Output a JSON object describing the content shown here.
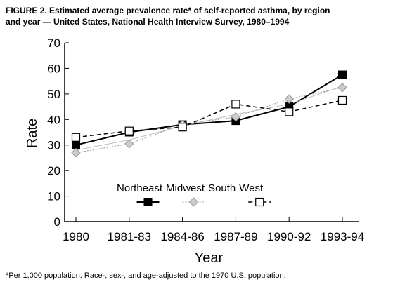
{
  "chart_data": {
    "type": "line",
    "title_lines": [
      "FIGURE 2. Estimated average prevalence rate* of self-reported asthma, by region",
      "and year — United States, National Health Interview Survey, 1980–1994"
    ],
    "footnote": "*Per 1,000 population. Race-, sex-, and age-adjusted to the 1970 U.S. population.",
    "x_label": "Year",
    "y_label": "Rate",
    "categories": [
      "1980",
      "1981-83",
      "1984-86",
      "1987-89",
      "1990-92",
      "1993-94"
    ],
    "series": [
      {
        "name": "Northeast",
        "color": "#000000",
        "values": [
          30,
          35,
          38,
          39.5,
          45,
          57.5
        ]
      },
      {
        "name": "Midwest",
        "color": "#999999",
        "values": [
          27,
          30.5,
          38,
          41,
          48,
          52.5
        ]
      },
      {
        "name": "South",
        "color": "#bbbbbb",
        "values": [
          28,
          32,
          37.5,
          42,
          46,
          53
        ]
      },
      {
        "name": "West",
        "color": "#000000",
        "values": [
          33,
          35.5,
          37,
          46,
          43,
          47.5
        ]
      }
    ],
    "ylim": [
      0,
      70
    ],
    "yticks": [
      0,
      10,
      20,
      30,
      40,
      50,
      60,
      70
    ]
  }
}
